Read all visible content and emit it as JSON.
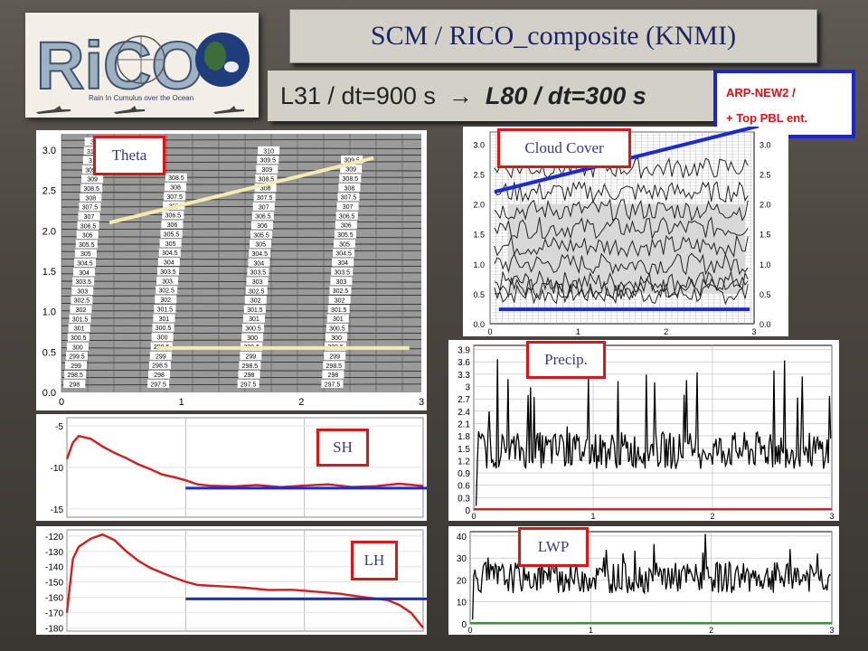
{
  "title": "SCM / RICO_composite  (KNMI)",
  "subtitle": {
    "left": "L31 / dt=900 s",
    "arrow": "→",
    "right": "L80 / dt=300 s"
  },
  "note": {
    "line1": "ARP-NEW2 /",
    "line2": "+ Top PBL ent."
  },
  "logo": {
    "text": "RiCO",
    "tagline": "Rain In Cumulus over the Ocean"
  },
  "colors": {
    "red": "#e01414",
    "blue": "#1a2bd6",
    "cream": "#f3ecb0",
    "title_text": "#1d2560"
  },
  "chart_data": [
    {
      "type": "contour",
      "label": "Theta",
      "x_ticks": [
        "0",
        "1",
        "2",
        "3"
      ],
      "y_ticks": [
        "0.0",
        "0.5",
        "1.0",
        "1.5",
        "2.0",
        "2.5",
        "3.0"
      ],
      "xlim": [
        0,
        3
      ],
      "ylim": [
        0,
        3.2
      ],
      "columns": [
        {
          "x": 0.1,
          "values": [
            "298",
            "298.5",
            "299",
            "299.5",
            "300",
            "300.5",
            "301",
            "301.5",
            "302",
            "302.5",
            "303",
            "303.5",
            "304",
            "304.5",
            "305",
            "305.5",
            "306",
            "306.5",
            "307",
            "307.5",
            "308",
            "308.5",
            "309",
            "309.5",
            "310",
            "310.5",
            "311"
          ]
        },
        {
          "x": 0.8,
          "values": [
            "297.5",
            "298",
            "298.5",
            "299",
            "299.5",
            "300",
            "300.5",
            "301",
            "301.5",
            "302",
            "302.5",
            "303",
            "303.5",
            "304",
            "304.5",
            "305",
            "305.5",
            "306",
            "306.5",
            "307",
            "307.5",
            "308",
            "308.5"
          ]
        },
        {
          "x": 1.55,
          "values": [
            "297.5",
            "298",
            "298.5",
            "299",
            "299.5",
            "300",
            "300.5",
            "301",
            "301.5",
            "302",
            "302.5",
            "303",
            "303.5",
            "304",
            "304.5",
            "305",
            "305.5",
            "306",
            "306.5",
            "307",
            "307.5",
            "308",
            "308.5",
            "309",
            "309.5",
            "310"
          ]
        },
        {
          "x": 2.25,
          "values": [
            "297.5",
            "298",
            "298.5",
            "299",
            "299.5",
            "300",
            "300.5",
            "301",
            "301.5",
            "302",
            "302.5",
            "303",
            "303.5",
            "304",
            "304.5",
            "305",
            "305.5",
            "306",
            "306.5",
            "307",
            "307.5",
            "308",
            "308.5",
            "309",
            "309.5"
          ]
        }
      ]
    },
    {
      "type": "line",
      "label": "Cloud Cover",
      "x_ticks": [
        "0",
        "1",
        "2",
        "3"
      ],
      "y_ticks": [
        "0.0",
        "0.5",
        "1.0",
        "1.5",
        "2.0",
        "2.5",
        "3.0"
      ],
      "xlim": [
        0,
        3
      ],
      "ylim": [
        0,
        3.2
      ]
    },
    {
      "type": "line",
      "label": "Precip.",
      "x_ticks": [
        "0",
        "1",
        "2",
        "3"
      ],
      "y_ticks": [
        "0",
        "0.3",
        "0.6",
        "0.9",
        "1.2",
        "1.5",
        "1.8",
        "2.1",
        "2.4",
        "2.7",
        "3",
        "3.3",
        "3.6",
        "3.9"
      ],
      "xlim": [
        0,
        3
      ],
      "ylim": [
        0,
        4.0
      ]
    },
    {
      "type": "line",
      "label": "SH",
      "y_ticks": [
        "-5",
        "-10",
        "-15"
      ],
      "xlim": [
        0,
        3
      ],
      "ylim": [
        -16,
        -4
      ],
      "reference_level": -12.5,
      "series": [
        {
          "x": [
            0,
            0.05,
            0.1,
            0.2,
            0.3,
            0.4,
            0.5,
            0.6,
            0.7,
            0.8,
            0.9,
            1.0,
            1.1,
            1.2,
            1.4,
            1.6,
            1.8,
            2.0,
            2.2,
            2.4,
            2.6,
            2.8,
            3.0
          ],
          "values": [
            -9,
            -7,
            -6.2,
            -6.6,
            -7.5,
            -8.2,
            -8.9,
            -9.6,
            -10.2,
            -10.8,
            -11.2,
            -11.6,
            -12.0,
            -12.2,
            -12.3,
            -12.1,
            -12.3,
            -12.2,
            -12.1,
            -12.3,
            -12.2,
            -12.0,
            -12.2
          ]
        }
      ]
    },
    {
      "type": "line",
      "label": "LH",
      "y_ticks": [
        "-120",
        "-130",
        "-140",
        "-150",
        "-160",
        "-170",
        "-180"
      ],
      "xlim": [
        0,
        3
      ],
      "ylim": [
        -182,
        -116
      ],
      "reference_level": -161,
      "series": [
        {
          "x": [
            0,
            0.05,
            0.1,
            0.2,
            0.3,
            0.4,
            0.5,
            0.6,
            0.7,
            0.8,
            0.9,
            1.0,
            1.1,
            1.3,
            1.5,
            1.7,
            1.9,
            2.1,
            2.3,
            2.5,
            2.7,
            2.8,
            2.9,
            3.0
          ],
          "values": [
            -170,
            -135,
            -127,
            -122,
            -119,
            -123,
            -130,
            -136,
            -141,
            -144,
            -147,
            -150,
            -152,
            -153,
            -154,
            -155,
            -155,
            -156,
            -158,
            -160,
            -162,
            -165,
            -170,
            -180
          ]
        }
      ]
    },
    {
      "type": "line",
      "label": "LWP",
      "x_ticks": [
        "0",
        "1",
        "2",
        "3"
      ],
      "y_ticks": [
        "0",
        "10",
        "20",
        "30",
        "40"
      ],
      "xlim": [
        0,
        3
      ],
      "ylim": [
        0,
        42
      ]
    }
  ]
}
